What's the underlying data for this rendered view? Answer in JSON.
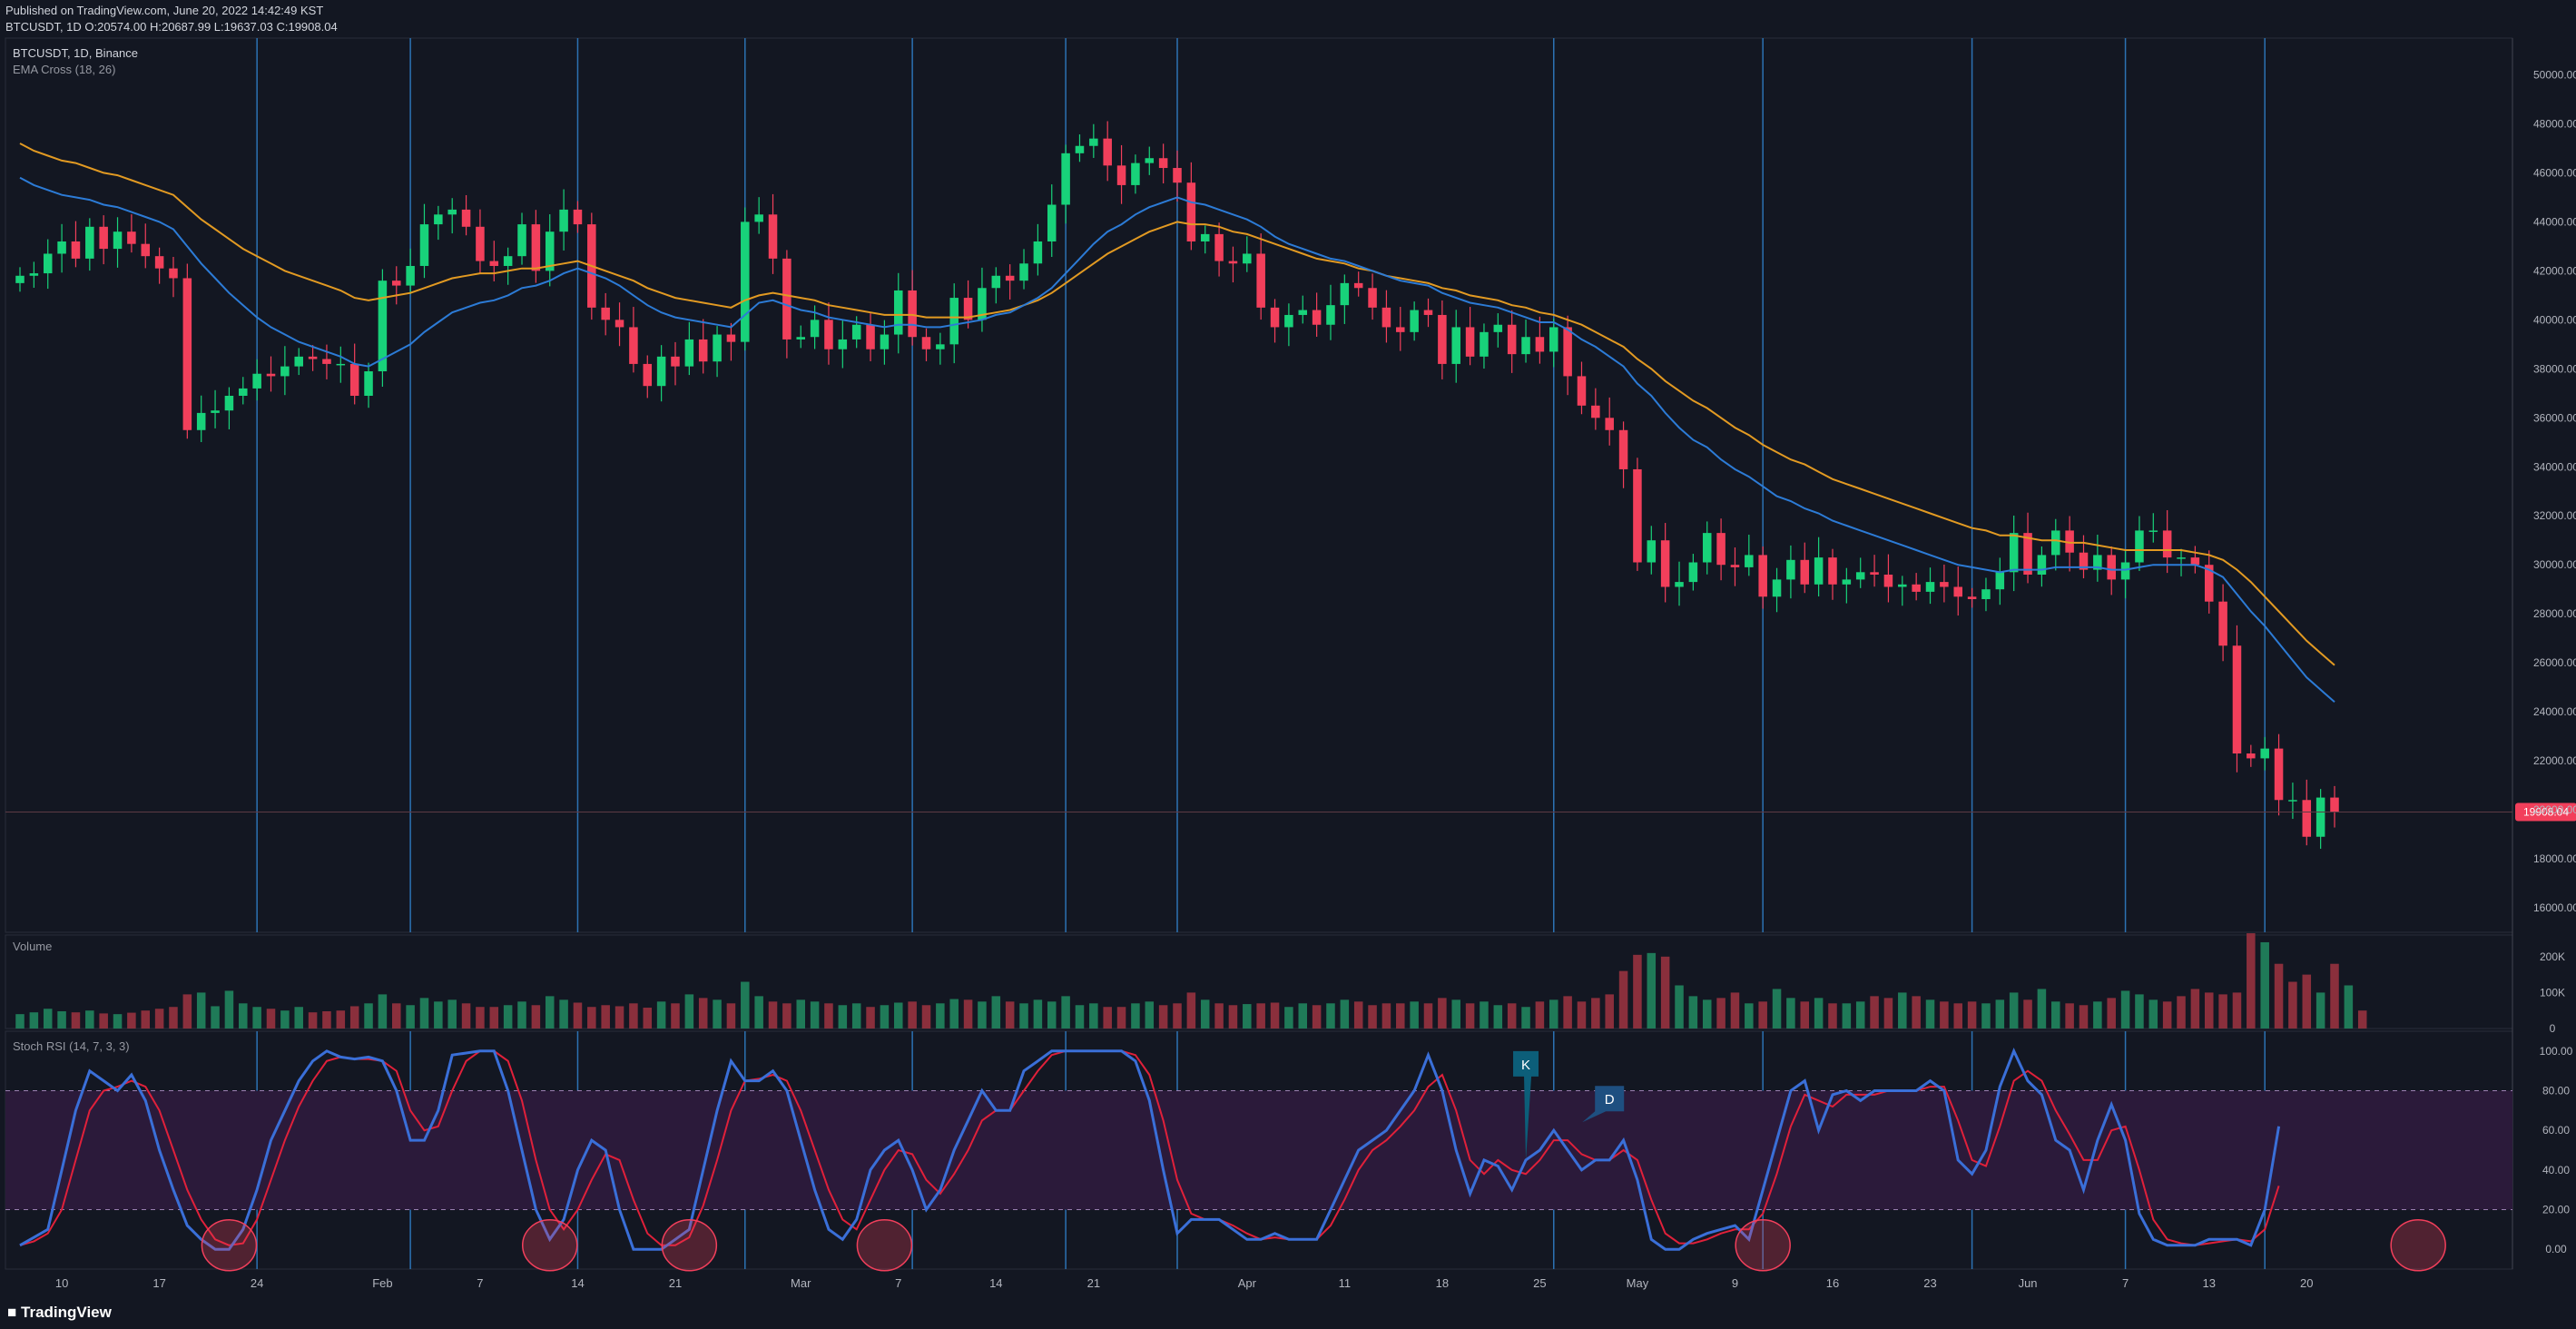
{
  "header": {
    "published": "Published on TradingView.com, June 20, 2022 14:42:49 KST",
    "symbol_line": "BTCUSDT, 1D O:20574.00 H:20687.99 L:19637.03 C:19908.04"
  },
  "footer": {
    "brand": "TradingView"
  },
  "colors": {
    "up": "#26a69a",
    "up_bright": "#18d27a",
    "down": "#f23f5b",
    "ema_fast": "#2c7bd6",
    "ema_slow": "#e29a22",
    "stoch_k": "#3a6fd8",
    "stoch_d": "#e0203a",
    "band": "#2b1a3a",
    "vline": "#2c72b3",
    "level": "#22e04a",
    "price_tag": "#f23f5b"
  },
  "chart_data": [
    {
      "type": "candlestick",
      "panel": "price",
      "title": "BTCUSDT, 1D, Binance",
      "indicator": "EMA Cross (18, 26)",
      "ylim": [
        15000,
        51500
      ],
      "y_ticks": [
        "16000.00",
        "18000.00",
        "20000.00",
        "22000.00",
        "24000.00",
        "26000.00",
        "28000.00",
        "30000.00",
        "32000.00",
        "34000.00",
        "36000.00",
        "38000.00",
        "40000.00",
        "42000.00",
        "44000.00",
        "46000.00",
        "48000.00",
        "50000.00"
      ],
      "last_price": "19908.04",
      "x_tick_labels": [
        "10",
        "17",
        "24",
        "Feb",
        "7",
        "14",
        "21",
        "Mar",
        "7",
        "14",
        "21",
        "Apr",
        "11",
        "18",
        "25",
        "May",
        "9",
        "16",
        "23",
        "Jun",
        "7",
        "13",
        "20"
      ],
      "close": [
        41800,
        41900,
        42700,
        43200,
        42500,
        43800,
        42900,
        43600,
        43100,
        42600,
        42100,
        41700,
        35500,
        36200,
        36300,
        36900,
        37200,
        37800,
        37700,
        38100,
        38500,
        38400,
        38200,
        38200,
        36900,
        37900,
        41600,
        41400,
        42200,
        43900,
        44300,
        44500,
        43800,
        42400,
        42200,
        42600,
        43900,
        42000,
        43600,
        44500,
        43900,
        40500,
        40000,
        39700,
        38200,
        37300,
        38500,
        38100,
        39200,
        38300,
        39400,
        39100,
        44000,
        44300,
        42500,
        39200,
        39300,
        40000,
        38800,
        39200,
        39800,
        38800,
        39400,
        41200,
        39300,
        38800,
        39000,
        40900,
        40000,
        41300,
        41800,
        41600,
        42300,
        43200,
        44700,
        46800,
        47100,
        47400,
        46300,
        45500,
        46400,
        46600,
        46200,
        45600,
        43200,
        43500,
        42400,
        42300,
        42700,
        40500,
        39700,
        40200,
        40400,
        39800,
        40600,
        41500,
        41300,
        40500,
        39700,
        39500,
        40400,
        40200,
        38200,
        39700,
        38500,
        39500,
        39800,
        38600,
        39300,
        38700,
        39700,
        37700,
        36500,
        36000,
        35500,
        33900,
        30100,
        31000,
        29100,
        29300,
        30100,
        31300,
        30000,
        29900,
        30400,
        28700,
        29400,
        30200,
        29200,
        30300,
        29200,
        29400,
        29700,
        29600,
        29100,
        29200,
        28900,
        29300,
        29100,
        28700,
        28600,
        29000,
        29700,
        31300,
        29600,
        30400,
        31400,
        30500,
        29800,
        30400,
        29400,
        30100,
        31400,
        31400,
        30300,
        30300,
        30000,
        28500,
        26700,
        22300,
        22100,
        22500,
        20400,
        20400,
        18900,
        20500,
        19908
      ],
      "ema_fast": [
        45800,
        45500,
        45300,
        45100,
        45000,
        44900,
        44700,
        44600,
        44400,
        44200,
        44000,
        43700,
        43000,
        42300,
        41700,
        41100,
        40600,
        40100,
        39700,
        39400,
        39100,
        38900,
        38700,
        38500,
        38200,
        38100,
        38400,
        38700,
        39000,
        39500,
        39900,
        40300,
        40500,
        40700,
        40800,
        41000,
        41300,
        41400,
        41600,
        41900,
        42100,
        41900,
        41700,
        41400,
        41000,
        40600,
        40300,
        40100,
        40000,
        39900,
        39800,
        39700,
        40200,
        40700,
        40800,
        40600,
        40400,
        40300,
        40100,
        40000,
        39900,
        39800,
        39700,
        39800,
        39800,
        39700,
        39700,
        39800,
        39900,
        40000,
        40200,
        40300,
        40600,
        40900,
        41300,
        41900,
        42500,
        43100,
        43600,
        43900,
        44300,
        44600,
        44800,
        45000,
        44800,
        44700,
        44500,
        44300,
        44100,
        43800,
        43400,
        43100,
        42900,
        42700,
        42500,
        42400,
        42200,
        42000,
        41800,
        41600,
        41500,
        41400,
        41100,
        40900,
        40700,
        40600,
        40500,
        40300,
        40100,
        39900,
        39900,
        39600,
        39200,
        38900,
        38500,
        38100,
        37400,
        36900,
        36200,
        35600,
        35100,
        34800,
        34300,
        33900,
        33600,
        33200,
        32800,
        32600,
        32300,
        32100,
        31800,
        31600,
        31400,
        31200,
        31000,
        30800,
        30600,
        30400,
        30200,
        30000,
        29900,
        29800,
        29700,
        29800,
        29800,
        29800,
        29900,
        29900,
        29900,
        29900,
        29800,
        29800,
        29900,
        30000,
        30000,
        30000,
        30000,
        29800,
        29500,
        28800,
        28100,
        27500,
        26800,
        26100,
        25400,
        24900,
        24400
      ],
      "ema_slow": [
        47200,
        46900,
        46700,
        46500,
        46400,
        46200,
        46000,
        45900,
        45700,
        45500,
        45300,
        45100,
        44600,
        44100,
        43700,
        43300,
        42900,
        42600,
        42300,
        42000,
        41800,
        41600,
        41400,
        41200,
        40900,
        40800,
        40900,
        41000,
        41100,
        41300,
        41500,
        41700,
        41800,
        41900,
        41900,
        42000,
        42100,
        42100,
        42200,
        42300,
        42400,
        42200,
        42000,
        41800,
        41600,
        41300,
        41100,
        40900,
        40800,
        40700,
        40600,
        40500,
        40800,
        41000,
        41100,
        41000,
        40900,
        40800,
        40600,
        40500,
        40400,
        40300,
        40200,
        40200,
        40200,
        40100,
        40100,
        40100,
        40100,
        40200,
        40300,
        40400,
        40600,
        40800,
        41100,
        41500,
        41900,
        42300,
        42700,
        43000,
        43300,
        43600,
        43800,
        44000,
        43900,
        43900,
        43800,
        43600,
        43500,
        43300,
        43100,
        42900,
        42700,
        42500,
        42400,
        42300,
        42100,
        42000,
        41800,
        41700,
        41600,
        41500,
        41300,
        41200,
        41000,
        40900,
        40800,
        40600,
        40500,
        40300,
        40200,
        40000,
        39800,
        39500,
        39200,
        38900,
        38400,
        38000,
        37500,
        37100,
        36700,
        36400,
        36000,
        35600,
        35300,
        34900,
        34600,
        34300,
        34100,
        33800,
        33500,
        33300,
        33100,
        32900,
        32700,
        32500,
        32300,
        32100,
        31900,
        31700,
        31500,
        31400,
        31200,
        31200,
        31100,
        31000,
        31000,
        30900,
        30900,
        30800,
        30700,
        30600,
        30600,
        30600,
        30600,
        30600,
        30500,
        30400,
        30200,
        29800,
        29300,
        28700,
        28100,
        27500,
        26900,
        26400,
        25900
      ],
      "vertical_lines_index": [
        17,
        28,
        40,
        52,
        64,
        75,
        83,
        110,
        125,
        140,
        151,
        161
      ]
    },
    {
      "type": "bar",
      "panel": "volume",
      "title": "Volume",
      "y_ticks": [
        "0",
        "100K",
        "200K"
      ],
      "ylim": [
        0,
        250000
      ],
      "values": [
        40,
        45,
        55,
        48,
        45,
        50,
        42,
        40,
        44,
        50,
        55,
        60,
        95,
        100,
        62,
        105,
        70,
        60,
        55,
        50,
        60,
        45,
        48,
        50,
        62,
        70,
        95,
        70,
        65,
        85,
        75,
        80,
        70,
        60,
        60,
        65,
        75,
        65,
        90,
        80,
        72,
        60,
        65,
        62,
        70,
        58,
        75,
        70,
        95,
        85,
        80,
        70,
        130,
        90,
        75,
        70,
        80,
        75,
        70,
        65,
        70,
        60,
        65,
        72,
        75,
        65,
        70,
        82,
        80,
        75,
        90,
        75,
        70,
        80,
        75,
        90,
        65,
        70,
        60,
        60,
        70,
        75,
        65,
        70,
        100,
        80,
        70,
        65,
        68,
        70,
        72,
        60,
        70,
        65,
        70,
        80,
        75,
        65,
        70,
        70,
        75,
        70,
        85,
        80,
        70,
        75,
        65,
        70,
        60,
        75,
        80,
        90,
        75,
        85,
        95,
        160,
        205,
        210,
        200,
        120,
        90,
        80,
        85,
        100,
        70,
        75,
        110,
        85,
        75,
        85,
        70,
        70,
        75,
        90,
        85,
        100,
        90,
        80,
        75,
        70,
        75,
        70,
        80,
        100,
        80,
        110,
        75,
        70,
        65,
        75,
        85,
        105,
        95,
        80,
        75,
        90,
        110,
        100,
        95,
        100,
        265,
        240,
        180,
        130,
        150,
        100,
        180,
        120,
        50
      ],
      "up": [
        1,
        1,
        1,
        1,
        0,
        1,
        0,
        1,
        0,
        0,
        0,
        0,
        0,
        1,
        1,
        1,
        1,
        1,
        0,
        1,
        1,
        0,
        0,
        0,
        0,
        1,
        1,
        0,
        1,
        1,
        1,
        1,
        0,
        0,
        0,
        1,
        1,
        0,
        1,
        1,
        0,
        0,
        0,
        0,
        0,
        0,
        1,
        0,
        1,
        0,
        1,
        0,
        1,
        1,
        0,
        0,
        1,
        1,
        0,
        1,
        1,
        0,
        1,
        1,
        0,
        0,
        1,
        1,
        0,
        1,
        1,
        0,
        1,
        1,
        1,
        1,
        1,
        1,
        0,
        0,
        1,
        1,
        0,
        0,
        0,
        1,
        0,
        0,
        1,
        0,
        0,
        1,
        1,
        0,
        1,
        1,
        0,
        0,
        0,
        0,
        1,
        0,
        0,
        1,
        0,
        1,
        1,
        0,
        1,
        0,
        1,
        0,
        0,
        0,
        0,
        0,
        0,
        1,
        0,
        1,
        1,
        1,
        0,
        0,
        1,
        0,
        1,
        1,
        0,
        1,
        0,
        1,
        1,
        0,
        0,
        1,
        0,
        1,
        0,
        0,
        0,
        1,
        1,
        1,
        0,
        1,
        1,
        0,
        0,
        1,
        0,
        1,
        1,
        1,
        0,
        0,
        0,
        0,
        0,
        0,
        0,
        1,
        0,
        0,
        0,
        1,
        0,
        1,
        0
      ]
    },
    {
      "type": "line",
      "panel": "stoch_rsi",
      "title": "Stoch RSI (14, 7, 3, 3)",
      "ylim": [
        -10,
        110
      ],
      "y_ticks": [
        "0.00",
        "20.00",
        "40.00",
        "60.00",
        "80.00",
        "100.00"
      ],
      "band": [
        20,
        80
      ],
      "k": [
        2,
        6,
        10,
        40,
        70,
        90,
        85,
        80,
        88,
        75,
        50,
        30,
        12,
        5,
        0,
        0,
        10,
        30,
        55,
        70,
        85,
        95,
        100,
        97,
        96,
        97,
        95,
        80,
        55,
        55,
        70,
        98,
        99,
        100,
        100,
        80,
        50,
        20,
        5,
        15,
        40,
        55,
        50,
        20,
        0,
        0,
        0,
        5,
        10,
        40,
        70,
        95,
        85,
        85,
        90,
        80,
        55,
        30,
        10,
        5,
        15,
        40,
        50,
        55,
        40,
        20,
        30,
        50,
        65,
        80,
        70,
        70,
        90,
        95,
        100,
        100,
        100,
        100,
        100,
        100,
        95,
        75,
        40,
        8,
        15,
        15,
        15,
        10,
        5,
        5,
        8,
        5,
        5,
        5,
        20,
        35,
        50,
        55,
        60,
        70,
        80,
        98,
        80,
        50,
        28,
        45,
        42,
        30,
        45,
        50,
        60,
        50,
        40,
        45,
        45,
        55,
        35,
        5,
        0,
        0,
        5,
        8,
        10,
        12,
        5,
        30,
        55,
        80,
        85,
        60,
        78,
        80,
        75,
        80,
        80,
        80,
        80,
        85,
        80,
        45,
        38,
        50,
        82,
        100,
        85,
        78,
        55,
        50,
        30,
        55,
        73,
        55,
        18,
        5,
        2,
        2,
        2,
        5,
        5,
        5,
        2,
        20,
        62
      ],
      "d": [
        2,
        4,
        8,
        20,
        45,
        70,
        80,
        82,
        85,
        82,
        70,
        50,
        30,
        15,
        5,
        2,
        3,
        15,
        35,
        55,
        72,
        85,
        95,
        97,
        96,
        96,
        95,
        90,
        70,
        60,
        62,
        80,
        95,
        100,
        100,
        95,
        75,
        45,
        20,
        10,
        20,
        35,
        48,
        45,
        25,
        8,
        2,
        2,
        6,
        22,
        45,
        70,
        85,
        86,
        88,
        85,
        70,
        50,
        30,
        15,
        10,
        25,
        40,
        50,
        48,
        35,
        28,
        38,
        50,
        65,
        70,
        70,
        80,
        90,
        98,
        100,
        100,
        100,
        100,
        100,
        98,
        88,
        65,
        35,
        18,
        15,
        15,
        12,
        8,
        5,
        6,
        5,
        5,
        5,
        12,
        25,
        40,
        50,
        55,
        62,
        70,
        82,
        88,
        70,
        45,
        38,
        45,
        40,
        38,
        45,
        55,
        55,
        48,
        45,
        45,
        50,
        45,
        25,
        8,
        3,
        3,
        5,
        8,
        10,
        10,
        18,
        38,
        62,
        78,
        75,
        72,
        78,
        78,
        78,
        80,
        80,
        80,
        82,
        82,
        65,
        45,
        42,
        62,
        85,
        90,
        85,
        70,
        58,
        45,
        45,
        60,
        62,
        40,
        15,
        5,
        3,
        2,
        3,
        4,
        5,
        4,
        10,
        32
      ],
      "labels": {
        "k": "K",
        "d": "D"
      },
      "circled_index": [
        15,
        38,
        48,
        62,
        125,
        172
      ]
    }
  ]
}
